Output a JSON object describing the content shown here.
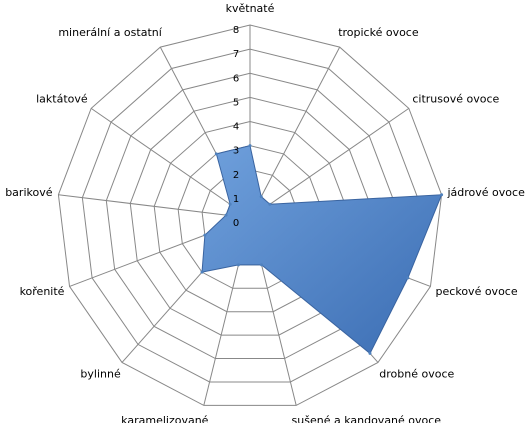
{
  "chart_data": {
    "type": "radar",
    "categories": [
      "květnaté",
      "tropické ovoce",
      "citrusové ovoce",
      "jádrové ovoce",
      "peckové ovoce",
      "drobné ovoce",
      "sušené a kandované ovoce",
      "karamelizované",
      "bylinné",
      "kořenité",
      "barikové",
      "laktátové",
      "minerální a ostatní"
    ],
    "values": [
      3,
      1,
      1,
      8,
      7,
      7.5,
      2,
      2,
      3,
      2,
      1,
      1,
      3
    ],
    "color": "#4f81bd",
    "ylim": [
      0,
      8
    ],
    "yticks": [
      0,
      1,
      2,
      3,
      4,
      5,
      6,
      7,
      8
    ],
    "grid": true
  }
}
